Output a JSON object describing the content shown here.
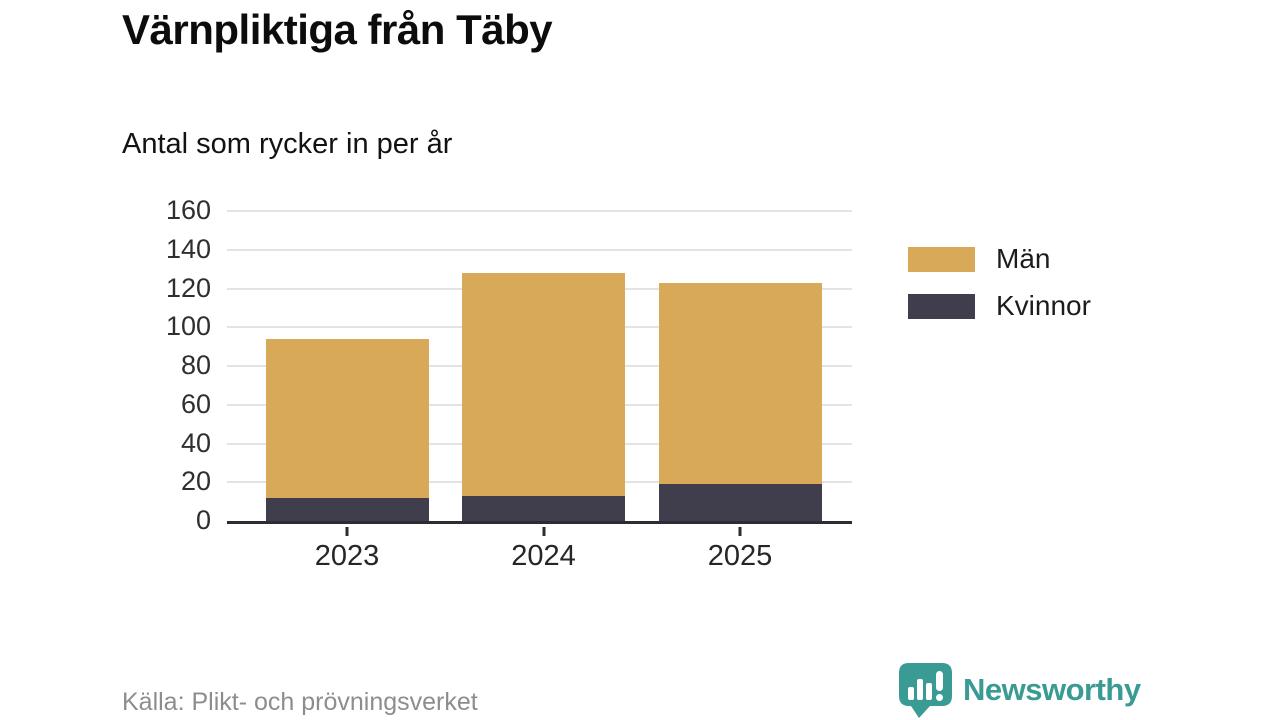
{
  "title": "Värnpliktiga från Täby",
  "subtitle": "Antal som rycker in per år",
  "chart_data": {
    "type": "bar",
    "stacked": true,
    "stack_order": "bottom-to-top",
    "categories": [
      "2023",
      "2024",
      "2025"
    ],
    "series": [
      {
        "name": "Kvinnor",
        "color": "#403D4C",
        "values": [
          12,
          13,
          19
        ]
      },
      {
        "name": "Män",
        "color": "#D9A95A",
        "values": [
          82,
          115,
          104
        ]
      }
    ],
    "totals": [
      94,
      128,
      123
    ],
    "title": "Värnpliktiga från Täby",
    "subtitle": "Antal som rycker in per år",
    "xlabel": "",
    "ylabel": "",
    "ylim": [
      0,
      160
    ],
    "yticks": [
      0,
      20,
      40,
      60,
      80,
      100,
      120,
      140,
      160
    ],
    "grid": true,
    "gridline_color": "#e3e3e3",
    "axis_color": "#2d2b33",
    "legend_position": "right"
  },
  "legend": {
    "items": [
      {
        "label": "Män",
        "color": "#D9A95A"
      },
      {
        "label": "Kvinnor",
        "color": "#403D4C"
      }
    ]
  },
  "footer": {
    "source": "Källa: Plikt- och prövningsverket",
    "brand": "Newsworthy",
    "brand_color": "#3A9B94"
  }
}
